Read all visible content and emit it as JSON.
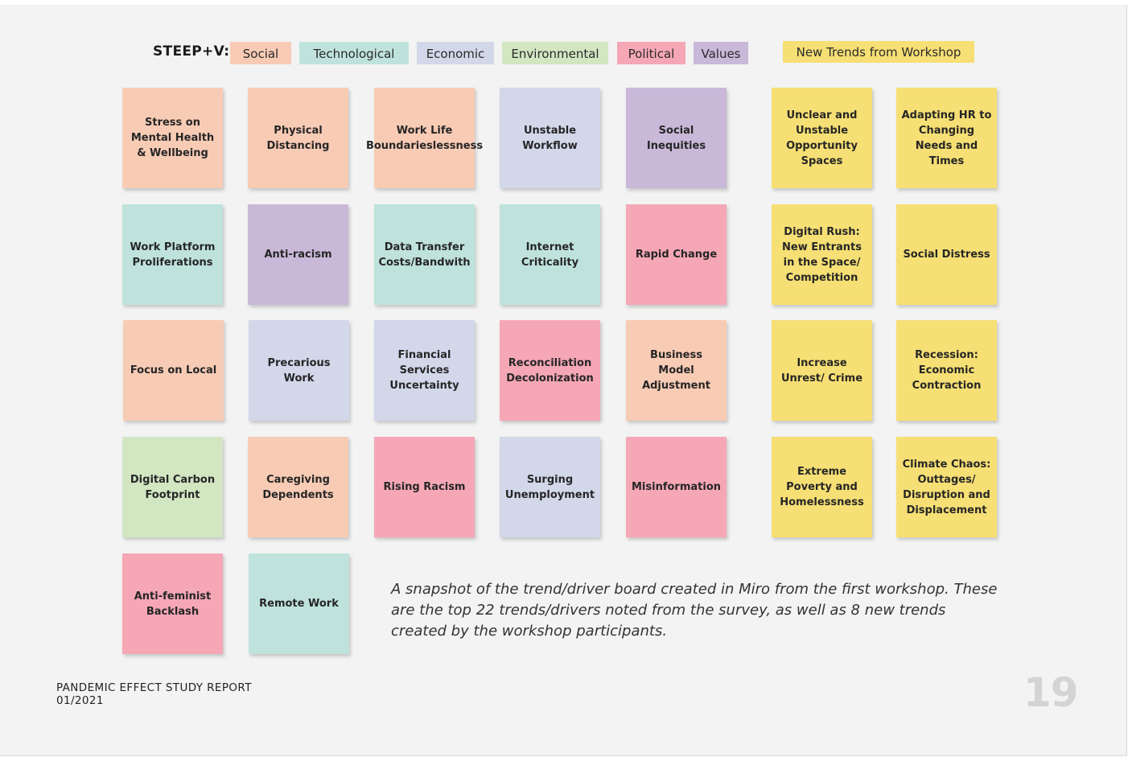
{
  "legend": {
    "title": "STEEP+V:",
    "categories": [
      {
        "label": "Social",
        "color": "#f8cbb5"
      },
      {
        "label": "Technological",
        "color": "#bfe3dc"
      },
      {
        "label": "Economic",
        "color": "#d2d7ea"
      },
      {
        "label": "Environmental",
        "color": "#d2e6c2"
      },
      {
        "label": "Political",
        "color": "#f5a7b5"
      },
      {
        "label": "Values",
        "color": "#c9b8d8"
      }
    ],
    "new_trends": {
      "label": "New Trends from Workshop",
      "color": "#f6df74"
    }
  },
  "notes": [
    {
      "text": "Stress on Mental Health & Wellbeing",
      "category": "Social"
    },
    {
      "text": "Physical Distancing",
      "category": "Social"
    },
    {
      "text": "Work Life Boundarieslessness",
      "category": "Social"
    },
    {
      "text": "Unstable Workflow",
      "category": "Economic"
    },
    {
      "text": "Social Inequities",
      "category": "Values"
    },
    {
      "text": "Unclear and Unstable Opportunity Spaces",
      "category": "New"
    },
    {
      "text": "Adapting HR to Changing Needs and Times",
      "category": "New"
    },
    {
      "text": "Work Platform Proliferations",
      "category": "Technological"
    },
    {
      "text": "Anti-racism",
      "category": "Values"
    },
    {
      "text": "Data Transfer Costs/Bandwith",
      "category": "Technological"
    },
    {
      "text": "Internet Criticality",
      "category": "Technological"
    },
    {
      "text": "Rapid Change",
      "category": "Political"
    },
    {
      "text": "Digital Rush: New Entrants in the Space/ Competition",
      "category": "New"
    },
    {
      "text": "Social Distress",
      "category": "New"
    },
    {
      "text": "Focus on Local",
      "category": "Social"
    },
    {
      "text": "Precarious Work",
      "category": "Economic"
    },
    {
      "text": "Financial Services Uncertainty",
      "category": "Economic"
    },
    {
      "text": "Reconciliation Decolonization",
      "category": "Political"
    },
    {
      "text": "Business Model Adjustment",
      "category": "Social"
    },
    {
      "text": "Increase Unrest/ Crime",
      "category": "New"
    },
    {
      "text": "Recession: Economic Contraction",
      "category": "New"
    },
    {
      "text": "Digital Carbon Footprint",
      "category": "Environmental"
    },
    {
      "text": "Caregiving Dependents",
      "category": "Social"
    },
    {
      "text": "Rising Racism",
      "category": "Political"
    },
    {
      "text": "Surging Unemployment",
      "category": "Economic"
    },
    {
      "text": "Misinformation",
      "category": "Political"
    },
    {
      "text": "Extreme Poverty and Homelessness",
      "category": "New"
    },
    {
      "text": "Climate Chaos: Outtages/ Disruption and Displacement",
      "category": "New"
    },
    {
      "text": "Anti-feminist Backlash",
      "category": "Political"
    },
    {
      "text": "Remote Work",
      "category": "Technological"
    }
  ],
  "caption": "A snapshot of the trend/driver board created in Miro from the first workshop. These are the top 22 trends/drivers noted from the survey, as well as 8 new trends created by the workshop participants.",
  "footer": {
    "report_title": "PANDEMIC EFFECT STUDY REPORT",
    "date": "01/2021"
  },
  "page_number": "19"
}
